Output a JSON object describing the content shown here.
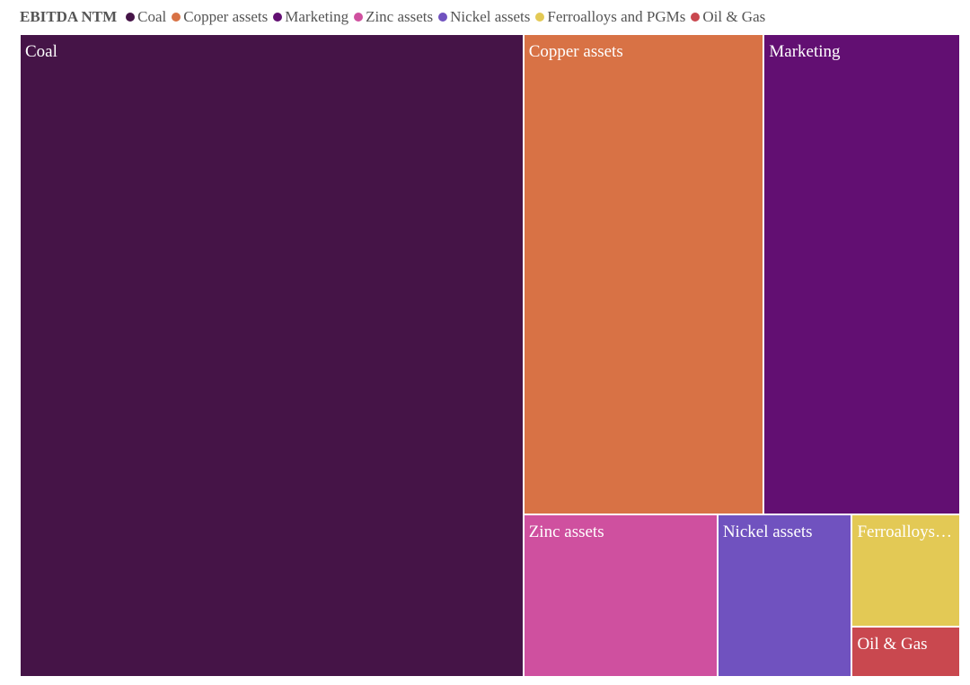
{
  "chart_data": {
    "type": "treemap",
    "title": "EBITDA NTM",
    "categories": [
      "Coal",
      "Copper assets",
      "Marketing",
      "Zinc assets",
      "Nickel assets",
      "Ferroalloys and PGMs",
      "Oil & Gas"
    ],
    "values": [
      53.5,
      19.1,
      15.6,
      5.2,
      3.6,
      2.0,
      0.9
    ],
    "colors": [
      "#451447",
      "#d87245",
      "#620f72",
      "#cf509f",
      "#7052bf",
      "#e3c955",
      "#c9484f"
    ]
  }
}
